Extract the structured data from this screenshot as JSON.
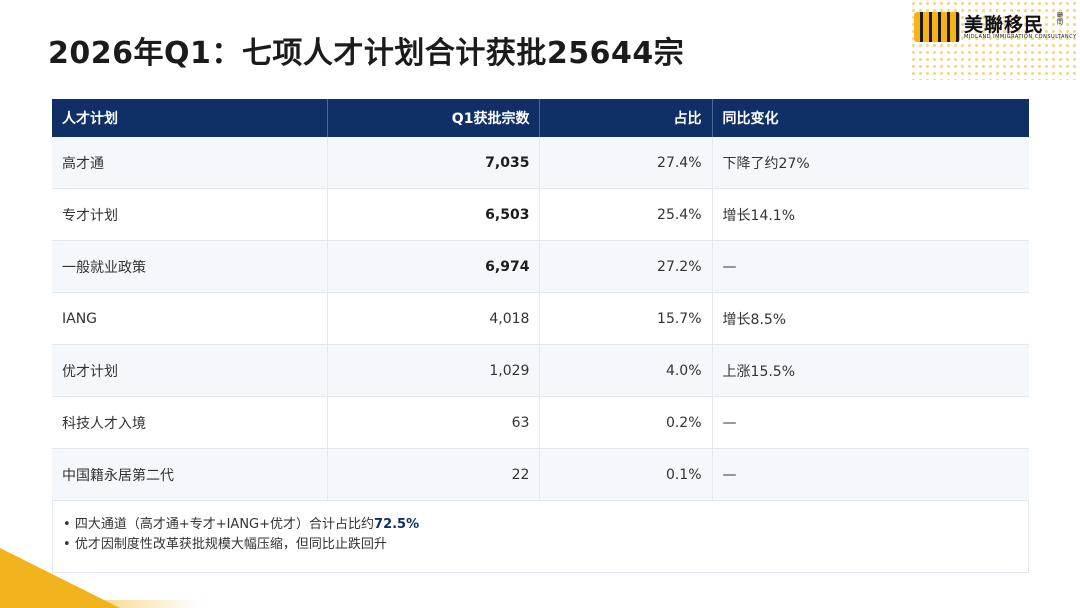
{
  "title": "2026年Q1：七项人才计划合计获批25644宗",
  "logo": {
    "name": "美聯移民",
    "sub": "MIDLAND IMMIGRATION CONSULTANCY",
    "tag": "顧問"
  },
  "table": {
    "headers": [
      "人才计划",
      "Q1获批宗数",
      "占比",
      "同比变化"
    ],
    "rows": [
      {
        "plan": "高才通",
        "count": "7,035",
        "share": "27.4%",
        "change": "下降了约27%"
      },
      {
        "plan": "专才计划",
        "count": "6,503",
        "share": "25.4%",
        "change": "增长14.1%"
      },
      {
        "plan": "一般就业政策",
        "count": "6,974",
        "share": "27.2%",
        "change": "—"
      },
      {
        "plan": "IANG",
        "count": "4,018",
        "share": "15.7%",
        "change": "增长8.5%"
      },
      {
        "plan": "优才计划",
        "count": "1,029",
        "share": "4.0%",
        "change": "上涨15.5%"
      },
      {
        "plan": "科技人才入境",
        "count": "63",
        "share": "0.2%",
        "change": "—"
      },
      {
        "plan": "中国籍永居第二代",
        "count": "22",
        "share": "0.1%",
        "change": "—"
      }
    ]
  },
  "notes": {
    "line1_prefix": "四大通道（高才通+专才+IANG+优才）合计占比约",
    "line1_highlight": "72.5%",
    "line2": "优才因制度性改革获批规模大幅压缩，但同比止跌回升"
  },
  "colors": {
    "header_bg": "#0f2f66",
    "accent": "#f3b31c"
  }
}
